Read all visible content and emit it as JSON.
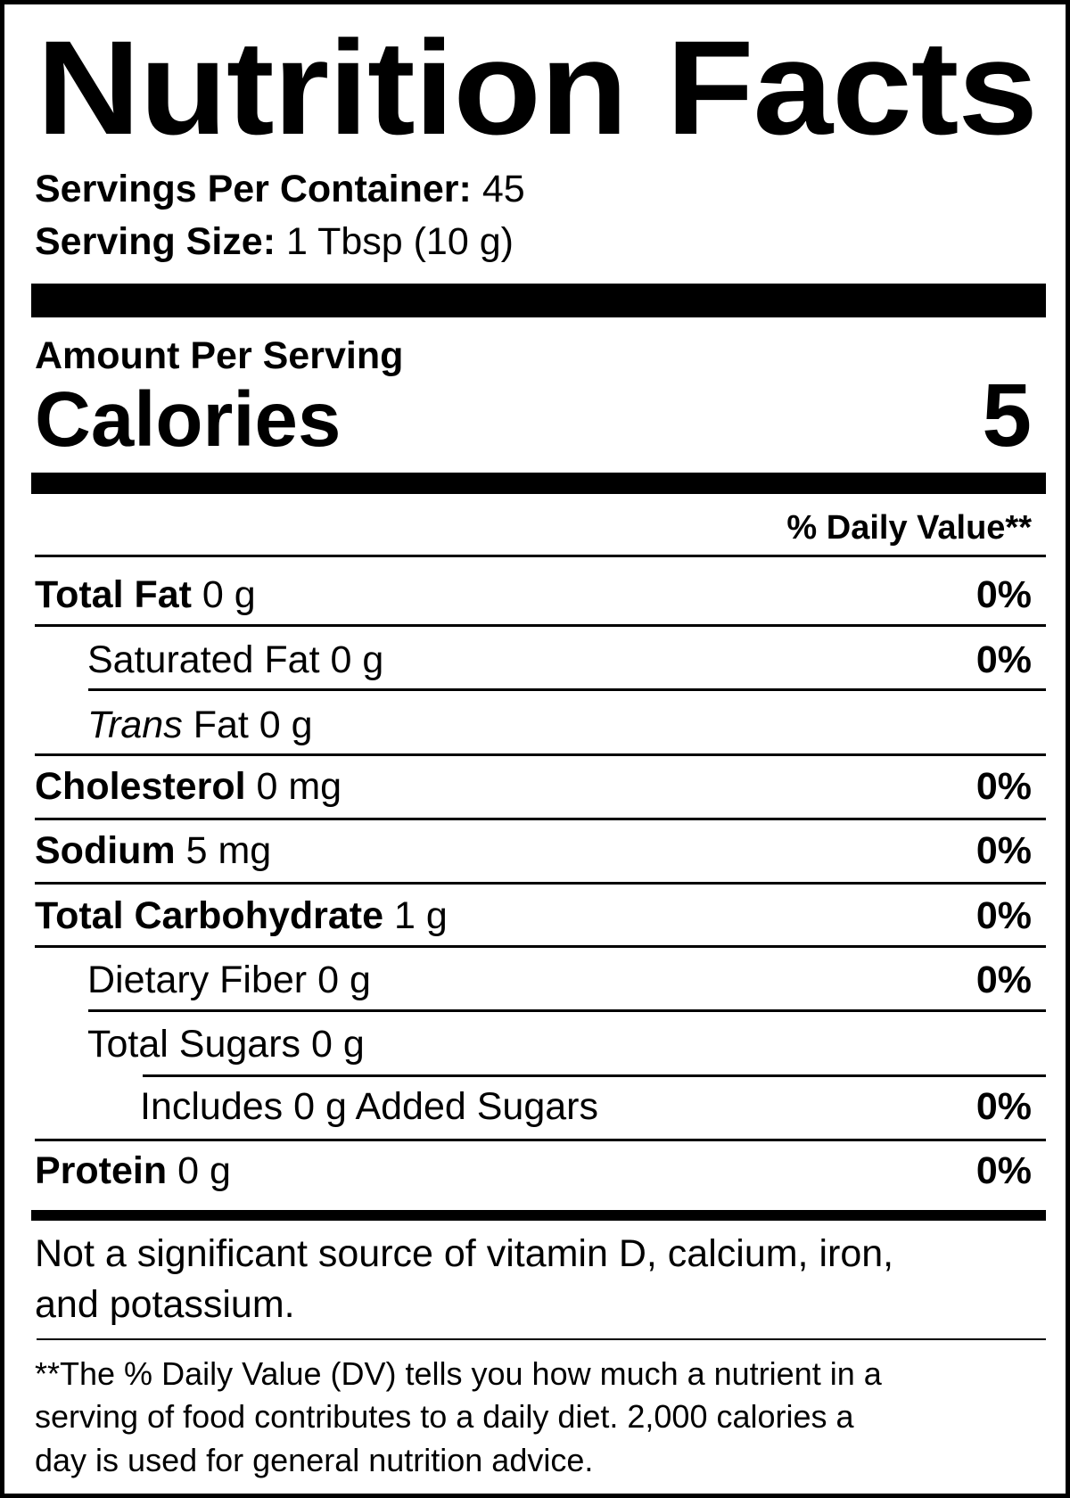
{
  "title": "Nutrition Facts",
  "servings": {
    "per_container_label": "Servings Per Container:",
    "per_container_value": "45",
    "size_label": "Serving Size:",
    "size_value": "1 Tbsp (10 g)"
  },
  "amount_per_serving": "Amount Per Serving",
  "calories": {
    "label": "Calories",
    "value": "5"
  },
  "dv_header": "% Daily Value**",
  "nutrients": [
    {
      "name": "Total Fat",
      "amount": "0 g",
      "dv": "0%"
    },
    {
      "name": "Saturated Fat",
      "amount": "0 g",
      "dv": "0%"
    },
    {
      "name_italic": "Trans",
      "name": "Fat",
      "amount": "0 g"
    },
    {
      "name": "Cholesterol",
      "amount": "0 mg",
      "dv": "0%"
    },
    {
      "name": "Sodium",
      "amount": "5 mg",
      "dv": "0%"
    },
    {
      "name": "Total Carbohydrate",
      "amount": "1 g",
      "dv": "0%"
    },
    {
      "name": "Dietary Fiber",
      "amount": "0 g",
      "dv": "0%"
    },
    {
      "name": "Total Sugars",
      "amount": "0 g"
    },
    {
      "name": "Includes 0 g Added Sugars",
      "dv": "0%"
    },
    {
      "name": "Protein",
      "amount": "0 g",
      "dv": "0%"
    }
  ],
  "footnote_vitamins": [
    "Not a significant source of vitamin D, calcium, iron,",
    "and potassium."
  ],
  "footnote_dv": [
    "**The % Daily Value (DV) tells you how much a nutrient in a",
    "serving of food contributes to a daily diet. 2,000 calories a",
    "day is used for general nutrition advice."
  ]
}
